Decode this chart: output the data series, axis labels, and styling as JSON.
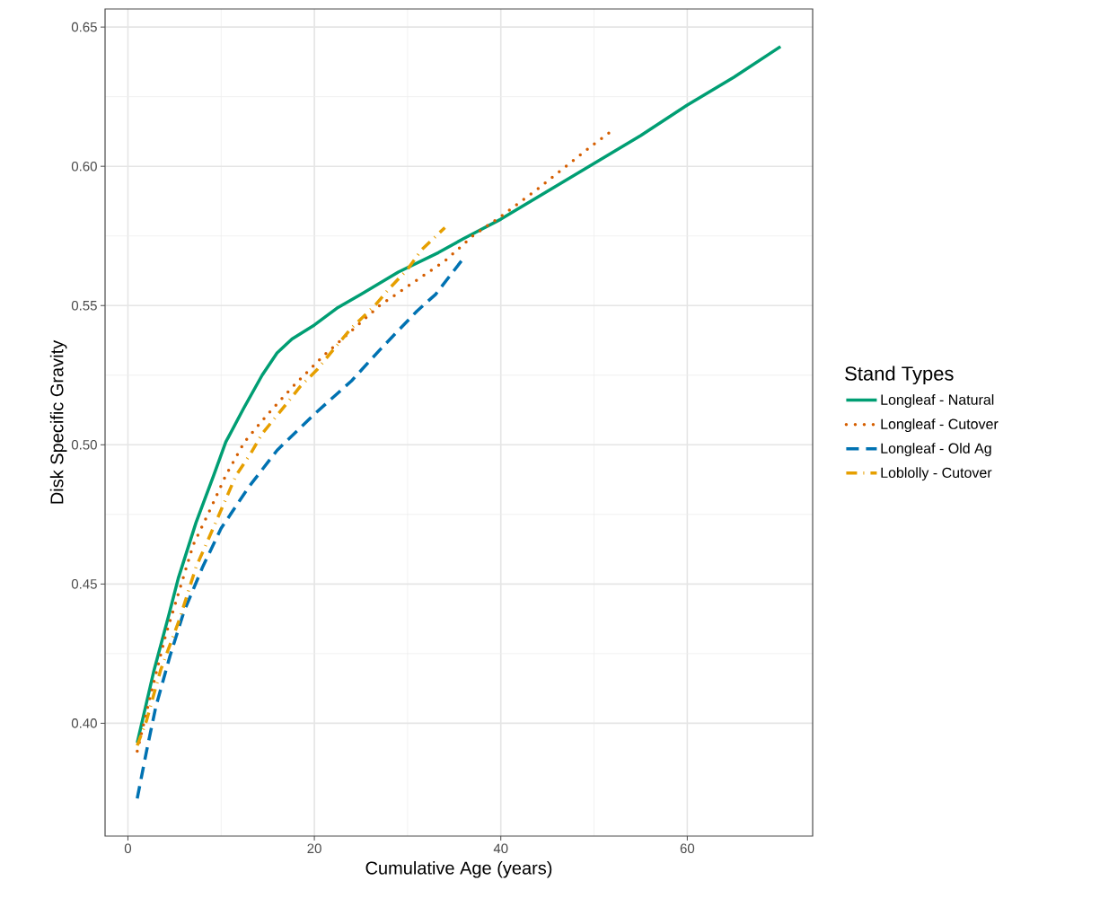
{
  "chart_data": {
    "type": "line",
    "xlabel": "Cumulative Age (years)",
    "ylabel": "Disk Specific Gravity",
    "legend_title": "Stand Types",
    "xlim": [
      -2.45,
      73.45
    ],
    "ylim": [
      0.3595,
      0.6565
    ],
    "xticks": [
      0,
      20,
      40,
      60
    ],
    "yticks": [
      {
        "value": 0.4,
        "label": "0.40"
      },
      0.45,
      {
        "value": 0.5,
        "label": "0.50"
      },
      0.55,
      {
        "value": 0.6,
        "label": "0.60"
      },
      0.65
    ],
    "grid": true,
    "legend": "right",
    "series": [
      {
        "name": "Longleaf - Natural",
        "color": "#009e73",
        "line_style": "solid",
        "x": [
          1,
          2.8,
          4.4,
          5.4,
          7.3,
          9.2,
          10.5,
          12.4,
          14.4,
          16,
          17.6,
          20,
          22.4,
          25,
          29,
          33.3,
          36,
          40,
          45,
          50,
          55,
          60,
          65,
          70
        ],
        "values": [
          0.393,
          0.419,
          0.439,
          0.452,
          0.472,
          0.489,
          0.501,
          0.513,
          0.525,
          0.533,
          0.538,
          0.543,
          0.549,
          0.554,
          0.562,
          0.569,
          0.574,
          0.581,
          0.591,
          0.601,
          0.611,
          0.622,
          0.632,
          0.643
        ]
      },
      {
        "name": "Longleaf - Cutover",
        "color": "#d55e00",
        "line_style": "dotted",
        "x": [
          1,
          2.5,
          4,
          7,
          9,
          10.5,
          12.5,
          15,
          18,
          21,
          24,
          27,
          30.5,
          34,
          37,
          40,
          44,
          47,
          50,
          52
        ],
        "values": [
          0.39,
          0.411,
          0.431,
          0.464,
          0.478,
          0.489,
          0.501,
          0.511,
          0.522,
          0.532,
          0.541,
          0.55,
          0.558,
          0.566,
          0.575,
          0.582,
          0.592,
          0.6,
          0.608,
          0.613
        ]
      },
      {
        "name": "Longleaf - Old Ag",
        "color": "#0072b2",
        "line_style": "dashed",
        "x": [
          1,
          2,
          3,
          4.5,
          6,
          8,
          10,
          12,
          13,
          16,
          20,
          24,
          27,
          31,
          33,
          36
        ],
        "values": [
          0.373,
          0.39,
          0.406,
          0.424,
          0.44,
          0.456,
          0.47,
          0.48,
          0.485,
          0.498,
          0.511,
          0.523,
          0.534,
          0.548,
          0.554,
          0.567
        ]
      },
      {
        "name": "Loblolly - Cutover",
        "color": "#e69f00",
        "line_style": "dashdot",
        "x": [
          1,
          2,
          3.5,
          5.5,
          7.3,
          9.4,
          11.6,
          13.2,
          14.4,
          16.6,
          18.5,
          20.3,
          22,
          24,
          26.5,
          28,
          30,
          31.5,
          34
        ],
        "values": [
          0.392,
          0.401,
          0.419,
          0.437,
          0.456,
          0.472,
          0.489,
          0.497,
          0.504,
          0.513,
          0.521,
          0.527,
          0.534,
          0.542,
          0.55,
          0.556,
          0.563,
          0.57,
          0.578
        ]
      }
    ]
  }
}
